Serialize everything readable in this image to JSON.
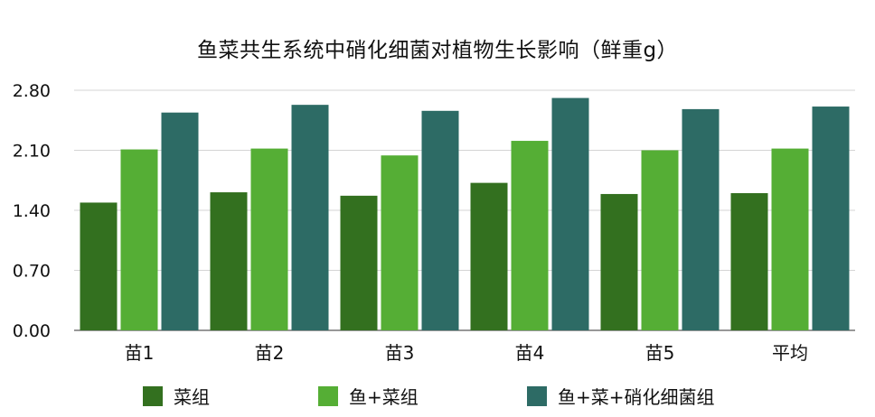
{
  "chart_data": {
    "type": "bar",
    "title": "鱼菜共生系统中硝化细菌对植物生长影响（鲜重g）",
    "xlabel": "",
    "ylabel": "",
    "categories": [
      "苗1",
      "苗2",
      "苗3",
      "苗4",
      "苗5",
      "平均"
    ],
    "yticks": [
      "0.00",
      "0.70",
      "1.40",
      "2.10",
      "2.80"
    ],
    "ylim": [
      0,
      2.8
    ],
    "grid": true,
    "legend_position": "bottom",
    "series": [
      {
        "name": "菜组",
        "color": "#33701f",
        "values": [
          1.49,
          1.61,
          1.57,
          1.72,
          1.59,
          1.6
        ]
      },
      {
        "name": "鱼+菜组",
        "color": "#55ae35",
        "values": [
          2.11,
          2.12,
          2.04,
          2.21,
          2.1,
          2.12
        ]
      },
      {
        "name": "鱼+菜+硝化细菌组",
        "color": "#2d6b65",
        "values": [
          2.54,
          2.63,
          2.56,
          2.71,
          2.58,
          2.61
        ]
      }
    ]
  }
}
